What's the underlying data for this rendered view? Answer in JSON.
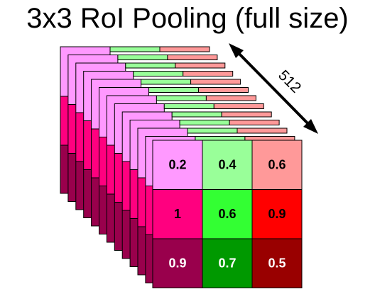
{
  "title": "3x3 RoI Pooling (full size)",
  "depth_label": "512",
  "grid": {
    "rows": [
      [
        {
          "value": "0.2",
          "fill": "#ff99ff",
          "text_color": "#000000"
        },
        {
          "value": "0.4",
          "fill": "#99ff99",
          "text_color": "#000000"
        },
        {
          "value": "0.6",
          "fill": "#ff9999",
          "text_color": "#000000"
        }
      ],
      [
        {
          "value": "1",
          "fill": "#ff007f",
          "text_color": "#000000"
        },
        {
          "value": "0.6",
          "fill": "#33ff33",
          "text_color": "#000000"
        },
        {
          "value": "0.9",
          "fill": "#ff0000",
          "text_color": "#000000"
        }
      ],
      [
        {
          "value": "0.9",
          "fill": "#99004c",
          "text_color": "#ffffff"
        },
        {
          "value": "0.7",
          "fill": "#009900",
          "text_color": "#ffffff"
        },
        {
          "value": "0.5",
          "fill": "#990000",
          "text_color": "#ffffff"
        }
      ]
    ]
  },
  "back_layer_colors": {
    "col0": [
      "#ff99ff",
      "#ff007f",
      "#99004c"
    ],
    "col1": [
      "#99ff99"
    ],
    "col2": [
      "#ff9999"
    ]
  },
  "border_color": "#000000"
}
